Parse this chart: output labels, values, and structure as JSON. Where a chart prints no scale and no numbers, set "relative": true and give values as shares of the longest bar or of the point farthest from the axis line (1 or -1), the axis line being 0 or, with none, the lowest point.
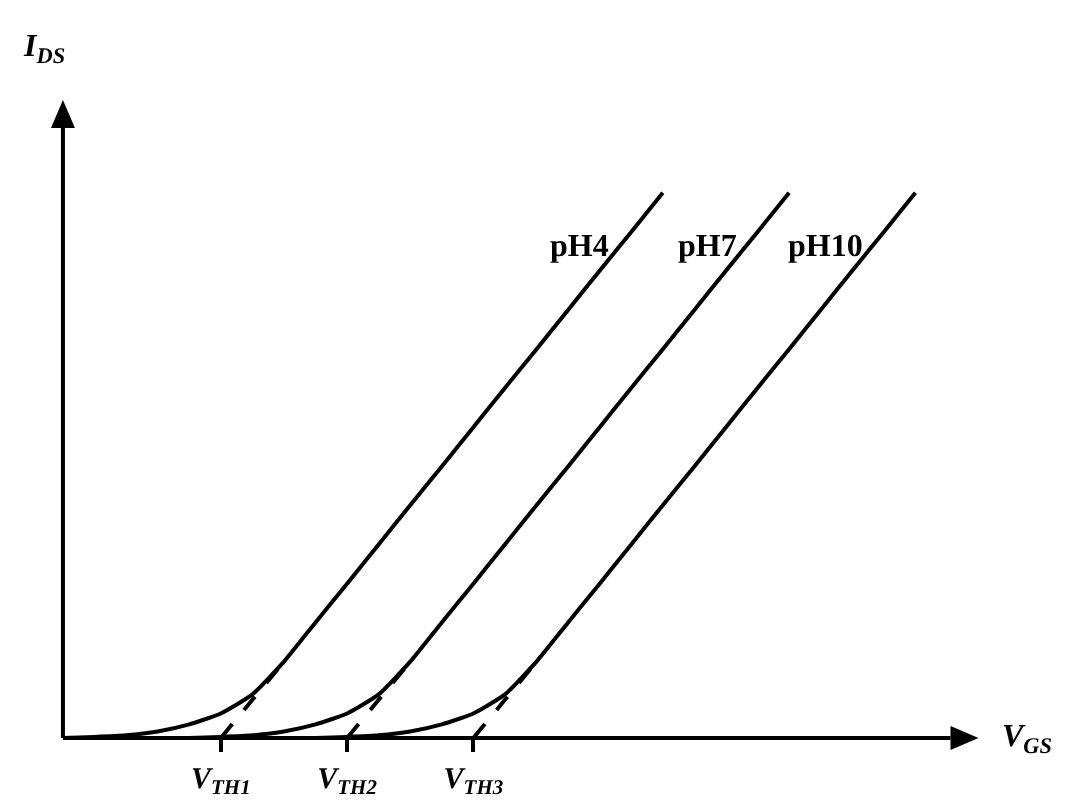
{
  "chart_data": {
    "type": "line",
    "relative": true,
    "xlabel": "V$_{GS}$",
    "ylabel": "I$_{DS}$",
    "categories": [
      null,
      null,
      null,
      null,
      null,
      "V$_{TH1}$",
      null,
      null,
      null,
      "V$_{TH2}$",
      null,
      null,
      null,
      "V$_{TH3}$",
      null,
      null,
      null,
      null,
      null,
      null,
      null,
      null,
      null,
      null,
      null,
      null,
      null,
      null,
      null,
      null
    ],
    "legend": false,
    "marker": "none",
    "series": [
      {
        "name": "pH4",
        "color": "#000000",
        "line_style": "solid",
        "values": [
          0,
          0.002,
          0.005,
          0.012,
          0.025,
          0.045,
          0.08,
          0.14,
          0.212,
          0.283,
          0.355,
          0.427,
          0.498,
          0.57,
          0.642,
          0.713,
          0.785,
          0.857,
          0.928,
          1,
          null,
          null,
          null,
          null,
          null,
          null,
          null,
          null,
          null,
          null
        ]
      },
      {
        "name": "pH7",
        "color": "#000000",
        "line_style": "solid",
        "values": [
          0,
          0,
          0,
          0,
          0,
          0.002,
          0.005,
          0.012,
          0.025,
          0.045,
          0.08,
          0.14,
          0.212,
          0.283,
          0.355,
          0.427,
          0.498,
          0.57,
          0.642,
          0.713,
          0.785,
          0.857,
          0.928,
          1,
          null,
          null,
          null,
          null,
          null,
          null
        ]
      },
      {
        "name": "pH10",
        "color": "#000000",
        "line_style": "solid",
        "values": [
          0,
          0,
          0,
          0,
          0,
          0,
          0,
          0,
          0,
          0.002,
          0.005,
          0.012,
          0.025,
          0.045,
          0.08,
          0.14,
          0.212,
          0.283,
          0.355,
          0.427,
          0.498,
          0.57,
          0.642,
          0.713,
          0.785,
          0.857,
          0.928,
          1,
          null,
          null
        ]
      },
      {
        "color": "#000000",
        "line_style": "dashed",
        "values": [
          null,
          null,
          null,
          null,
          null,
          0,
          0.07,
          0.14,
          null,
          null,
          null,
          null,
          null,
          null,
          null,
          null,
          null,
          null,
          null,
          null,
          null,
          null,
          null,
          null,
          null,
          null,
          null,
          null,
          null,
          null
        ]
      },
      {
        "color": "#000000",
        "line_style": "dashed",
        "values": [
          null,
          null,
          null,
          null,
          null,
          null,
          null,
          null,
          null,
          0,
          0.07,
          0.14,
          null,
          null,
          null,
          null,
          null,
          null,
          null,
          null,
          null,
          null,
          null,
          null,
          null,
          null,
          null,
          null,
          null,
          null
        ]
      },
      {
        "color": "#000000",
        "line_style": "dashed",
        "values": [
          null,
          null,
          null,
          null,
          null,
          null,
          null,
          null,
          null,
          null,
          null,
          null,
          null,
          0,
          0.07,
          0.14,
          null,
          null,
          null,
          null,
          null,
          null,
          null,
          null,
          null,
          null,
          null,
          null,
          null,
          null
        ]
      }
    ]
  }
}
